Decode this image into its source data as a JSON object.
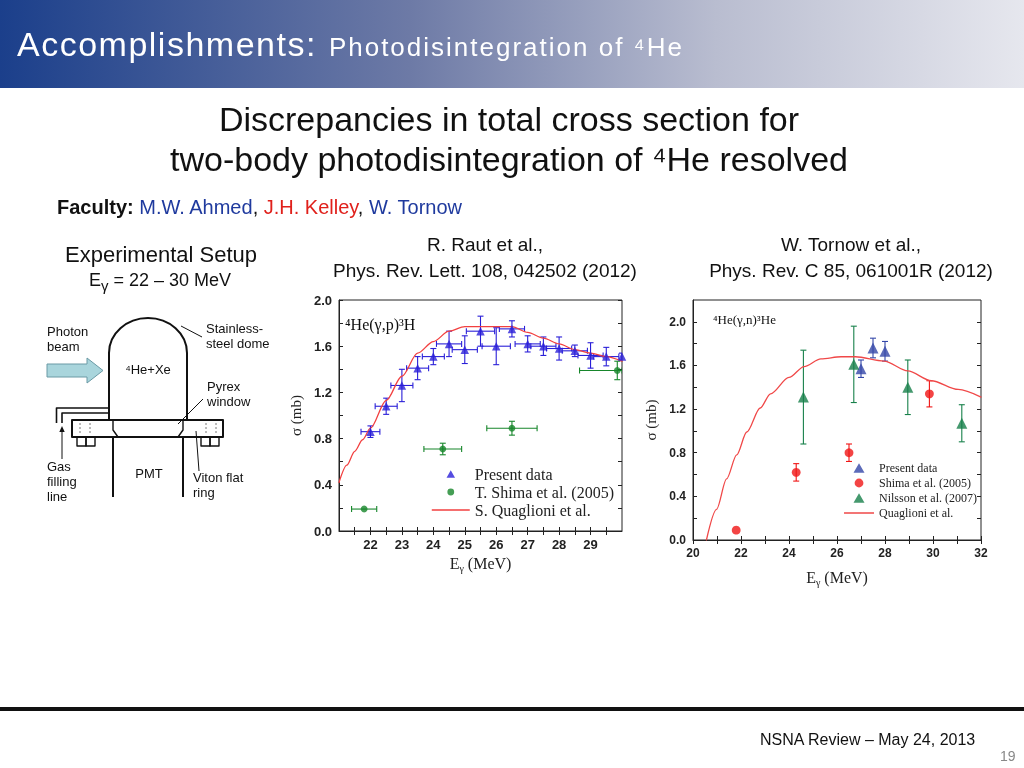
{
  "chart_data": [
    {
      "type": "other",
      "title": "Accomplishments:",
      "subtitle": "Photodisintegration of ⁴He",
      "annotations": [
        "Discrepancies in total cross section for\ntwo-body photodisintegration of ⁴He resolved",
        "Faculty: M.W. Ahmed, J.H. Kelley, W. Tornow",
        "Experimental Setup",
        "E$_{γ}$ = 22 – 30 MeV",
        "Photon beam",
        "Stainless-steel dome",
        "⁴He+Xe",
        "Pyrex window",
        "Gas filling line",
        "PMT",
        "Viton flat ring",
        "NSNA Review – May 24, 2013",
        "19"
      ]
    },
    {
      "type": "scatter",
      "title": "R. Raut et al.,",
      "subtitle": "Phys. Rev. Lett. 108, 042502 (2012)",
      "xlabel": "E$_{γ}$ (MeV)",
      "ylabel": "σ (mb)",
      "annotations": [
        "⁴He(γ,p)³H"
      ],
      "xlim": [
        21,
        30
      ],
      "xticks": [
        {
          "value": 21.5,
          "label": null
        },
        22,
        {
          "value": 22.5,
          "label": null
        },
        23,
        {
          "value": 23.5,
          "label": null
        },
        24,
        {
          "value": 24.5,
          "label": null
        },
        25,
        {
          "value": 25.5,
          "label": null
        },
        26,
        {
          "value": 26.5,
          "label": null
        },
        27,
        {
          "value": 27.5,
          "label": null
        },
        28,
        {
          "value": 28.5,
          "label": null
        },
        29,
        {
          "value": 29.5,
          "label": null
        }
      ],
      "ylim": [
        0,
        2
      ],
      "yticks": [
        {
          "value": 0,
          "label": "0.0"
        },
        {
          "value": 0.2,
          "label": null
        },
        0.4,
        {
          "value": 0.6,
          "label": null
        },
        0.8,
        {
          "value": 1,
          "label": null
        },
        1.2,
        {
          "value": 1.4,
          "label": null
        },
        1.6,
        {
          "value": 1.8,
          "label": null
        },
        {
          "value": 2,
          "label": "2.0"
        }
      ],
      "legend": "bottom right",
      "series": [
        {
          "name": "Present data",
          "type": "scatter",
          "marker": "triangle",
          "color": "#2a1fd8",
          "x": [
            22,
            22.5,
            23,
            23.5,
            24,
            24.5,
            25,
            25.5,
            26,
            26.5,
            27,
            27.5,
            28,
            28.5,
            29,
            29.5,
            30
          ],
          "values": [
            0.86,
            1.08,
            1.26,
            1.41,
            1.51,
            1.62,
            1.57,
            1.73,
            1.6,
            1.75,
            1.62,
            1.6,
            1.58,
            1.56,
            1.52,
            1.51,
            1.51
          ],
          "errors": [
            0.05,
            0.07,
            0.14,
            0.1,
            0.07,
            0.11,
            0.12,
            0.13,
            0.16,
            0.07,
            0.07,
            0.08,
            0.1,
            0.05,
            0.11,
            0.08,
            0.03
          ],
          "xerrors": [
            0.3,
            0.35,
            0.35,
            0.35,
            0.35,
            0.4,
            0.4,
            0.45,
            0.45,
            0.4,
            0.4,
            0.4,
            0.4,
            0.4,
            0.4,
            0.4,
            null
          ]
        },
        {
          "name": "T. Shima et al. (2005)",
          "type": "scatter",
          "marker": "circle",
          "color": "#17862b",
          "x": [
            21.8,
            24.3,
            26.5,
            29.85
          ],
          "values": [
            0.19,
            0.71,
            0.89,
            1.39
          ],
          "errors": [
            null,
            0.05,
            0.06,
            0.08
          ],
          "xerrors": [
            0.4,
            0.6,
            0.8,
            [
              28.65,
              30
            ]
          ]
        },
        {
          "name": "S. Quaglioni et al.",
          "type": "line",
          "color": "#f24040",
          "x": [
            21,
            21.25,
            21.5,
            21.75,
            22,
            22.5,
            23,
            23.5,
            24,
            24.5,
            25,
            25.5,
            26,
            26.5,
            27,
            27.5,
            28,
            28.5,
            29,
            29.5,
            30
          ],
          "values": [
            0.42,
            0.57,
            0.69,
            0.79,
            0.89,
            1.13,
            1.34,
            1.54,
            1.64,
            1.73,
            1.77,
            1.77,
            1.77,
            1.77,
            1.72,
            1.67,
            1.62,
            1.57,
            1.54,
            1.51,
            1.47
          ]
        }
      ]
    },
    {
      "type": "scatter",
      "title": "W. Tornow et al.,",
      "subtitle": "Phys. Rev. C 85, 061001R (2012)",
      "xlabel": "E$_{γ}$ (MeV)",
      "ylabel": "σ (mb)",
      "annotations": [
        "⁴He(γ,n)³He"
      ],
      "xlim": [
        20,
        32
      ],
      "xticks": [
        20,
        {
          "value": 21,
          "label": null
        },
        22,
        {
          "value": 23,
          "label": null
        },
        24,
        {
          "value": 25,
          "label": null
        },
        26,
        {
          "value": 27,
          "label": null
        },
        28,
        {
          "value": 29,
          "label": null
        },
        30,
        {
          "value": 31,
          "label": null
        },
        32
      ],
      "ylim": [
        0,
        2.2
      ],
      "yticks": [
        {
          "value": 0,
          "label": "0.0"
        },
        {
          "value": 0.2,
          "label": null
        },
        0.4,
        {
          "value": 0.6,
          "label": null
        },
        0.8,
        {
          "value": 1,
          "label": null
        },
        1.2,
        {
          "value": 1.4,
          "label": null
        },
        1.6,
        {
          "value": 1.8,
          "label": null
        },
        {
          "value": 2,
          "label": "2.0"
        }
      ],
      "legend": "bottom right",
      "series": [
        {
          "name": "Present data",
          "type": "scatter",
          "marker": "triangle",
          "color": "#3346a8",
          "x": [
            27,
            27.5,
            28
          ],
          "values": [
            1.57,
            1.76,
            1.73
          ],
          "errors": [
            0.08,
            0.09,
            0.09
          ]
        },
        {
          "name": "Shima et al. (2005)",
          "type": "scatter",
          "marker": "circle",
          "color": "#f01515",
          "x": [
            21.8,
            24.3,
            26.5,
            29.85
          ],
          "values": [
            0.09,
            0.62,
            0.8,
            1.34
          ],
          "errors": [
            null,
            0.08,
            0.08,
            0.12
          ]
        },
        {
          "name": "Nilsson et al. (2007)",
          "type": "scatter",
          "marker": "triangle",
          "color": "#17804a",
          "x": [
            24.6,
            26.7,
            28.95,
            31.2
          ],
          "values": [
            1.31,
            1.61,
            1.4,
            1.07
          ],
          "errors": [
            0.43,
            0.35,
            0.25,
            0.17
          ]
        },
        {
          "name": "Quaglioni et al.",
          "type": "line",
          "color": "#f04848",
          "x": [
            20.56,
            20.98,
            21.4,
            21.82,
            22.24,
            22.8,
            23.23,
            24,
            24.63,
            25.33,
            26.17,
            26.77,
            27.96,
            28.95,
            29.93,
            31.05,
            32
          ],
          "values": [
            0,
            0.28,
            0.56,
            0.78,
            0.99,
            1.21,
            1.34,
            1.49,
            1.59,
            1.66,
            1.68,
            1.68,
            1.64,
            1.55,
            1.46,
            1.38,
            1.31
          ]
        }
      ]
    }
  ]
}
